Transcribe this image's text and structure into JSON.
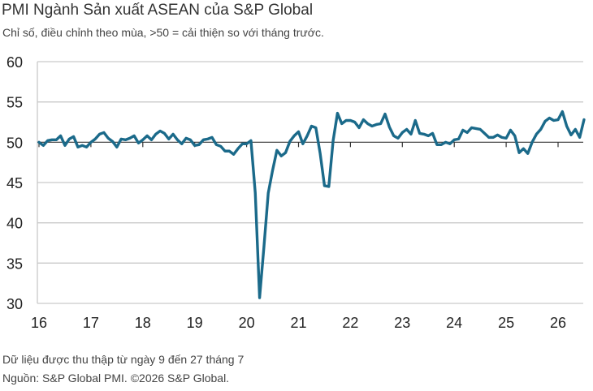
{
  "title": "PMI Ngành Sản xuất ASEAN của S&P Global",
  "subtitle": "Chỉ số, điều chỉnh theo mùa, >50 = cải thiện so với tháng trước.",
  "footnote": "Dữ liệu được thu thập từ ngày 9 đến 27 tháng 7",
  "source": "Nguồn: S&P Global PMI. ©2026 S&P Global.",
  "colors": {
    "line": "#1b6a8a",
    "grid": "#c9c9c9",
    "reference": "#333333"
  },
  "chart_data": {
    "type": "line",
    "title": "PMI Ngành Sản xuất ASEAN của S&P Global",
    "xlabel": "",
    "ylabel": "",
    "ylim": [
      30,
      60
    ],
    "yticks": [
      30,
      35,
      40,
      45,
      50,
      55,
      60
    ],
    "reference_line": 50,
    "grid": "horizontal",
    "x_tick_labels": [
      "16",
      "17",
      "18",
      "19",
      "20",
      "21",
      "22",
      "23",
      "24",
      "25",
      "26"
    ],
    "x_start": "2016-01",
    "x_end": "2026-07",
    "series": [
      {
        "values": [
          50.0,
          49.6,
          50.2,
          50.3,
          50.3,
          50.8,
          49.6,
          50.4,
          50.7,
          49.4,
          49.6,
          49.4,
          50.0,
          50.4,
          51.0,
          51.2,
          50.5,
          50.1,
          49.4,
          50.4,
          50.3,
          50.5,
          50.8,
          49.9,
          50.3,
          50.8,
          50.3,
          51.0,
          51.4,
          51.1,
          50.4,
          51.0,
          50.3,
          49.8,
          50.5,
          50.3,
          49.6,
          49.7,
          50.3,
          50.4,
          50.6,
          49.7,
          49.5,
          48.9,
          48.9,
          48.5,
          49.2,
          49.8,
          49.8,
          50.2,
          43.7,
          30.7,
          37.0,
          43.7,
          46.5,
          49.0,
          48.3,
          48.7,
          50.1,
          50.8,
          51.3,
          49.8,
          50.8,
          52.0,
          51.8,
          48.6,
          44.6,
          44.5,
          50.2,
          53.6,
          52.3,
          52.7,
          52.7,
          52.5,
          51.8,
          52.8,
          52.3,
          52.0,
          52.2,
          52.3,
          53.5,
          51.9,
          50.8,
          50.5,
          51.2,
          51.6,
          51.0,
          52.7,
          51.1,
          51.0,
          50.8,
          51.1,
          49.7,
          49.7,
          50.0,
          49.8,
          50.3,
          50.4,
          51.5,
          51.2,
          51.8,
          51.7,
          51.6,
          51.1,
          50.6,
          50.6,
          50.9,
          50.6,
          50.5,
          51.5,
          50.8,
          48.7,
          49.2,
          48.6,
          50.0,
          51.0,
          51.6,
          52.6,
          53.0,
          52.7,
          52.8,
          53.8,
          52.0,
          50.9,
          51.6,
          50.6,
          52.8
        ]
      }
    ]
  }
}
